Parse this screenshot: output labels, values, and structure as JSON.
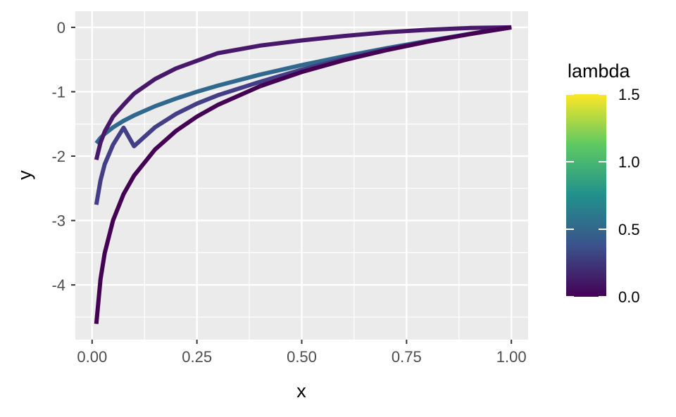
{
  "chart_data": {
    "type": "line",
    "xlabel": "x",
    "ylabel": "y",
    "xlim": [
      -0.04,
      1.04
    ],
    "ylim": [
      -4.85,
      0.25
    ],
    "x_ticks": [
      0.0,
      0.25,
      0.5,
      0.75,
      1.0
    ],
    "x_tick_labels": [
      "0.00",
      "0.25",
      "0.50",
      "0.75",
      "1.00"
    ],
    "y_ticks": [
      0,
      -1,
      -2,
      -3,
      -4
    ],
    "y_tick_labels": [
      "0",
      "-1",
      "-2",
      "-3",
      "-4"
    ],
    "grid": true,
    "legend": {
      "title": "lambda",
      "position": "right",
      "type": "colorbar",
      "range": [
        0.0,
        1.5
      ],
      "ticks": [
        1.5,
        1.0,
        0.5,
        0.0
      ],
      "tick_labels": [
        "1.5",
        "1.0",
        "0.5",
        "0.0"
      ],
      "colors": [
        "#440154",
        "#3b528b",
        "#21908c",
        "#5dc963",
        "#fde725"
      ]
    },
    "x": [
      0.01,
      0.02,
      0.03,
      0.05,
      0.075,
      0.1,
      0.15,
      0.2,
      0.25,
      0.3,
      0.4,
      0.5,
      0.6,
      0.7,
      0.8,
      0.9,
      1.0
    ],
    "series": [
      {
        "lambda": 0.0,
        "color": "#440154",
        "values": [
          -4.605,
          -3.912,
          -3.507,
          -2.996,
          -2.59,
          -2.303,
          -1.897,
          -1.609,
          -1.386,
          -1.204,
          -0.916,
          -0.693,
          -0.511,
          -0.357,
          -0.223,
          -0.105,
          0.0
        ]
      },
      {
        "lambda": 0.1,
        "color": "#48186a",
        "values": [
          -2.057,
          -1.79,
          -1.619,
          -1.385,
          -1.202,
          -1.03,
          -0.803,
          -0.638,
          -0.519,
          -0.401,
          -0.284,
          -0.203,
          -0.135,
          -0.077,
          -0.038,
          -0.01,
          0.0
        ],
        "values_note": ""
      },
      {
        "lambda": 0.2,
        "color": "#433e85",
        "values": [
          -2.755,
          -2.378,
          -2.126,
          -1.822,
          -1.559,
          -1.845,
          -1.552,
          -1.345,
          -1.184,
          -1.054,
          -0.847,
          -0.657,
          -0.488,
          -0.344,
          -0.218,
          -0.104,
          0.0
        ]
      },
      {
        "lambda": 0.5,
        "color": "#31688e",
        "values": [
          -1.8,
          -1.717,
          -1.654,
          -1.553,
          -1.452,
          -1.368,
          -1.225,
          -1.106,
          -1.0,
          -0.905,
          -0.735,
          -0.586,
          -0.451,
          -0.327,
          -0.211,
          -0.103,
          0.0
        ]
      }
    ]
  }
}
